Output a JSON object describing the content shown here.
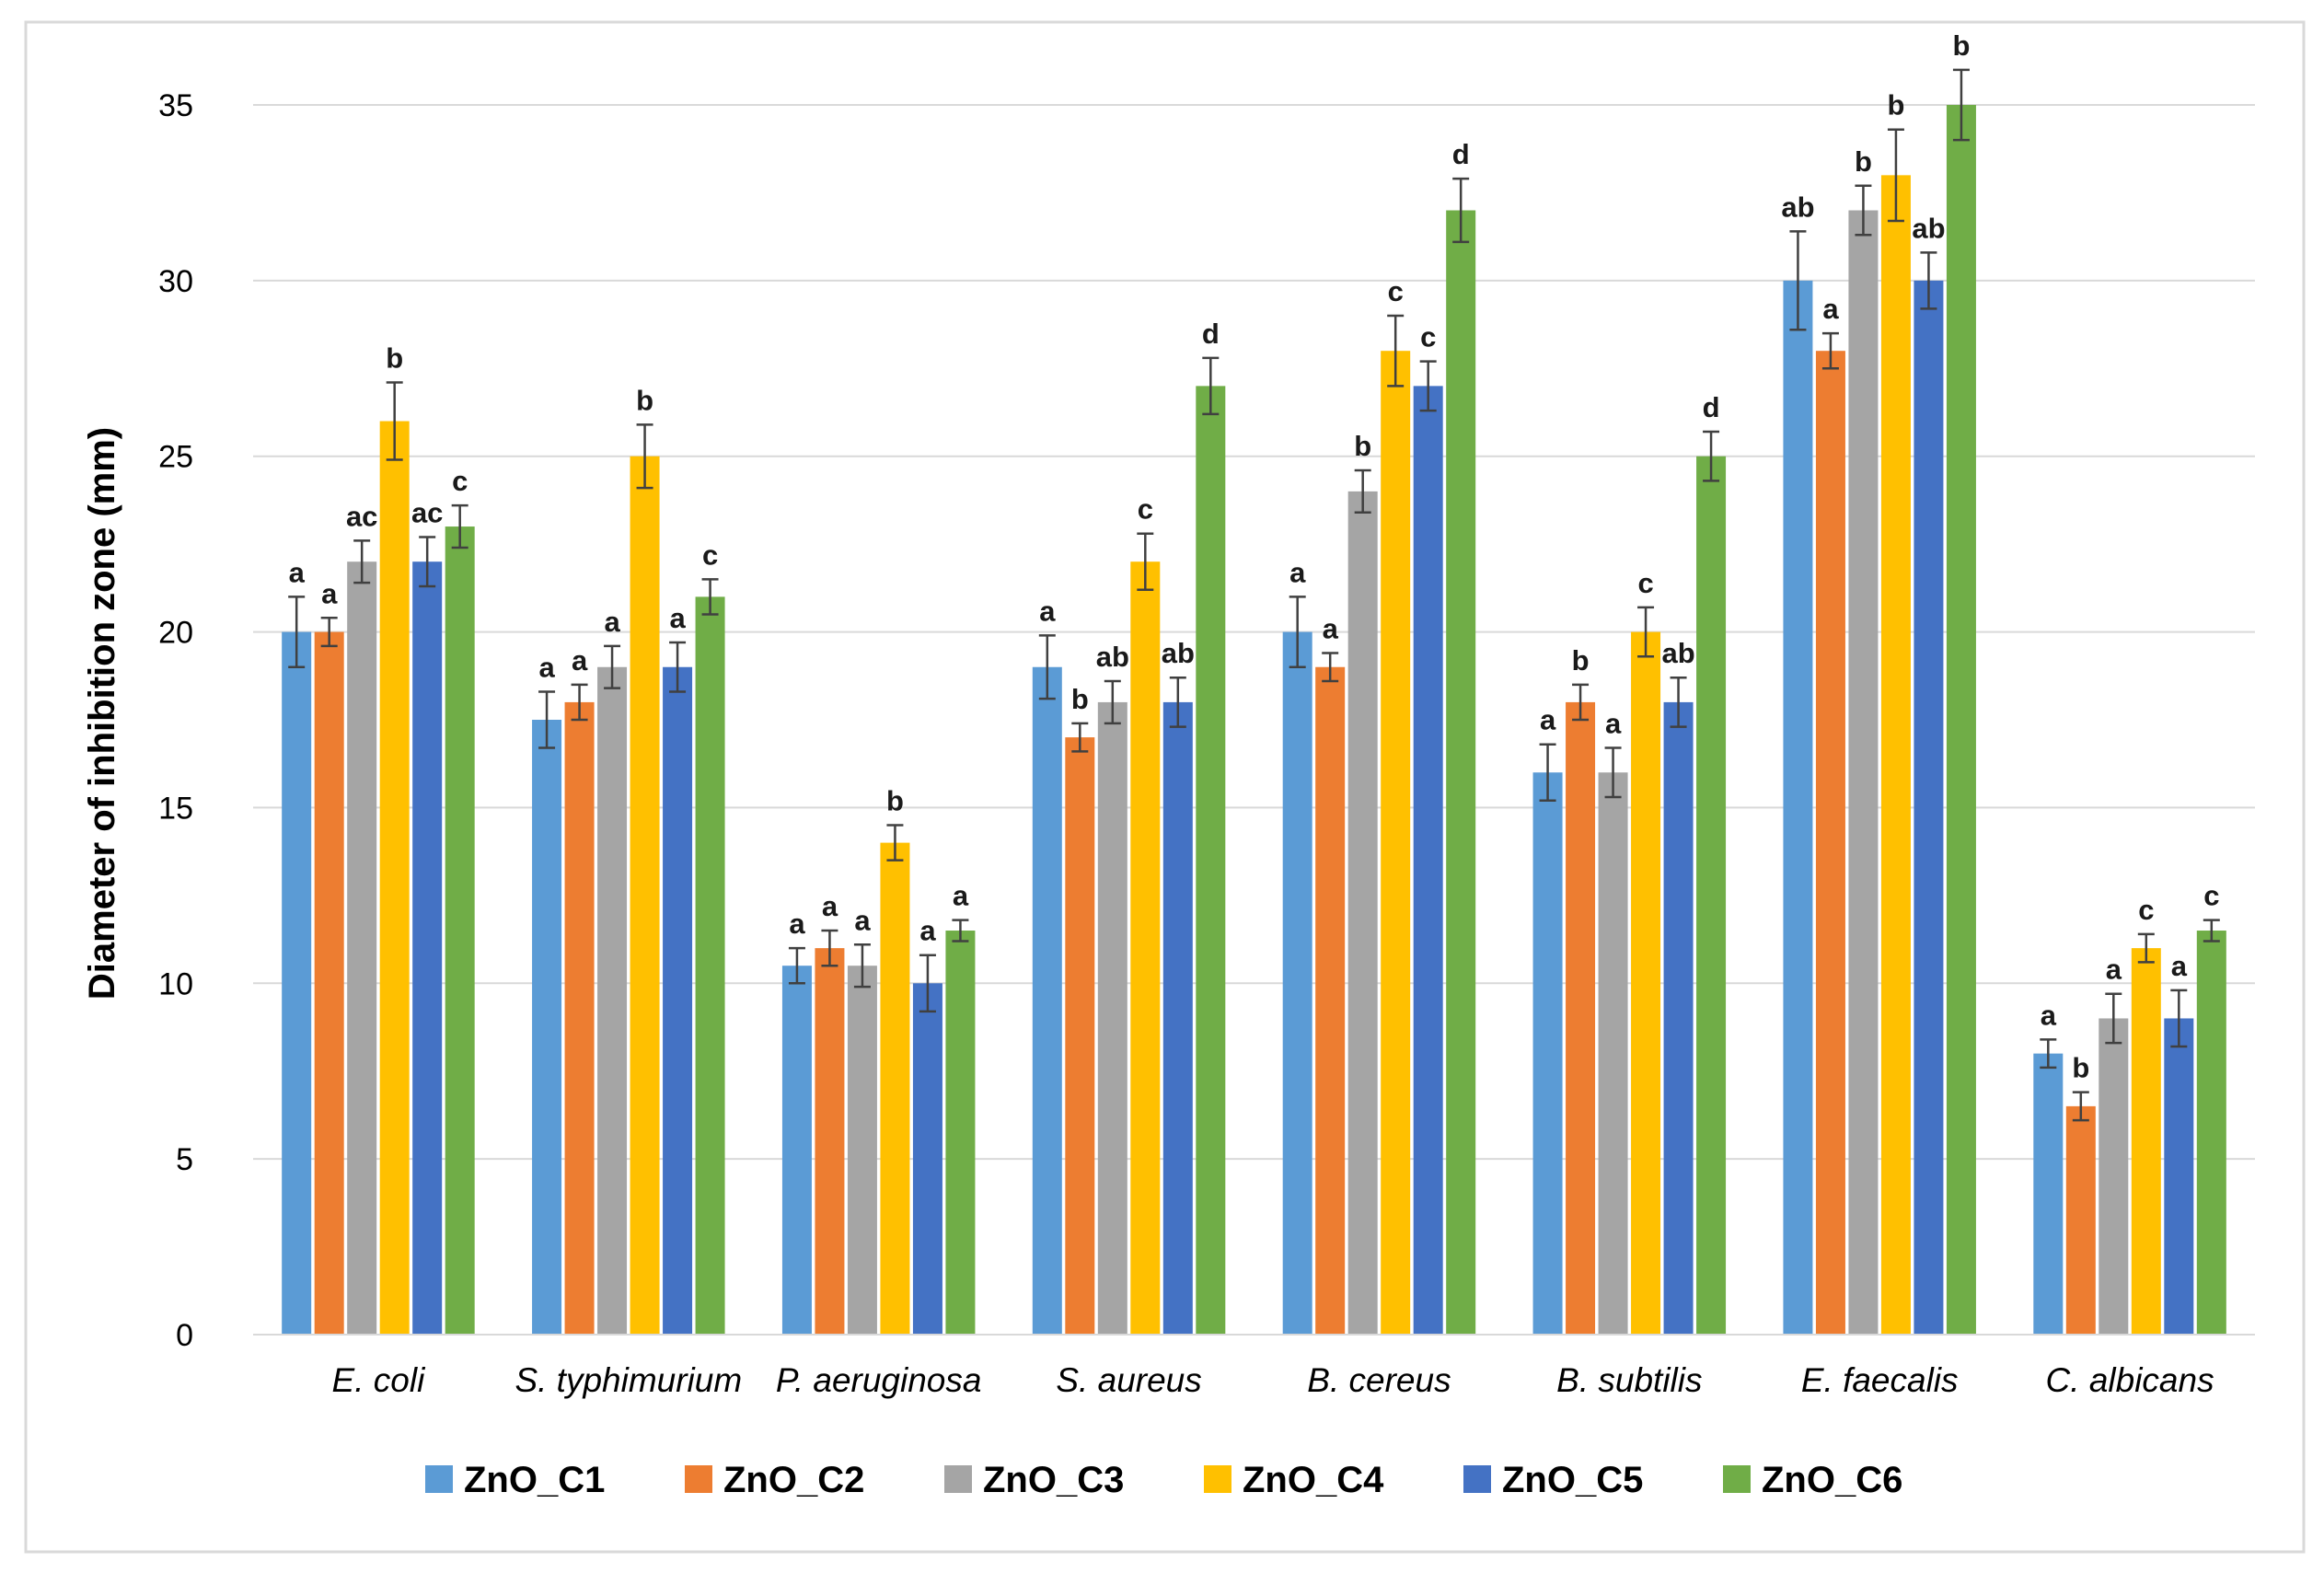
{
  "chart_data": {
    "type": "bar",
    "ylabel": "Diameter of inhibition zone (mm)",
    "ylim": [
      0,
      35
    ],
    "yticks": [
      0,
      5,
      10,
      15,
      20,
      25,
      30,
      35
    ],
    "grid": true,
    "legend_position": "bottom",
    "categories": [
      "E. coli",
      "S. typhimurium",
      "P. aeruginosa",
      "S. aureus",
      "B. cereus",
      "B. subtilis",
      "E. faecalis",
      "C. albicans"
    ],
    "series": [
      {
        "name": "ZnO_C1",
        "color": "#5B9BD5",
        "values": [
          20,
          17.5,
          10.5,
          19,
          20,
          16,
          30,
          8
        ],
        "errors": [
          1.0,
          0.8,
          0.5,
          0.9,
          1.0,
          0.8,
          1.4,
          0.4
        ],
        "letters": [
          "a",
          "a",
          "a",
          "a",
          "a",
          "a",
          "ab",
          "a"
        ]
      },
      {
        "name": "ZnO_C2",
        "color": "#ED7D31",
        "values": [
          20,
          18,
          11,
          17,
          19,
          18,
          28,
          6.5
        ],
        "errors": [
          0.4,
          0.5,
          0.5,
          0.4,
          0.4,
          0.5,
          0.5,
          0.4
        ],
        "letters": [
          "a",
          "a",
          "a",
          "b",
          "a",
          "b",
          "a",
          "b"
        ]
      },
      {
        "name": "ZnO_C3",
        "color": "#A5A5A5",
        "values": [
          22,
          19,
          10.5,
          18,
          24,
          16,
          32,
          9
        ],
        "errors": [
          0.6,
          0.6,
          0.6,
          0.6,
          0.6,
          0.7,
          0.7,
          0.7
        ],
        "letters": [
          "ac",
          "a",
          "a",
          "ab",
          "b",
          "a",
          "b",
          "a"
        ]
      },
      {
        "name": "ZnO_C4",
        "color": "#FFC000",
        "values": [
          26,
          25,
          14,
          22,
          28,
          20,
          33,
          11
        ],
        "errors": [
          1.1,
          0.9,
          0.5,
          0.8,
          1.0,
          0.7,
          1.3,
          0.4
        ],
        "letters": [
          "b",
          "b",
          "b",
          "c",
          "c",
          "c",
          "b",
          "c"
        ]
      },
      {
        "name": "ZnO_C5",
        "color": "#4472C4",
        "values": [
          22,
          19,
          10,
          18,
          27,
          18,
          30,
          9
        ],
        "errors": [
          0.7,
          0.7,
          0.8,
          0.7,
          0.7,
          0.7,
          0.8,
          0.8
        ],
        "letters": [
          "ac",
          "a",
          "a",
          "ab",
          "c",
          "ab",
          "ab",
          "a"
        ]
      },
      {
        "name": "ZnO_C6",
        "color": "#70AD47",
        "values": [
          23,
          21,
          11.5,
          27,
          32,
          25,
          35,
          11.5
        ],
        "errors": [
          0.6,
          0.5,
          0.3,
          0.8,
          0.9,
          0.7,
          1.0,
          0.3
        ],
        "letters": [
          "c",
          "c",
          "a",
          "d",
          "d",
          "d",
          "b",
          "c"
        ]
      }
    ]
  }
}
